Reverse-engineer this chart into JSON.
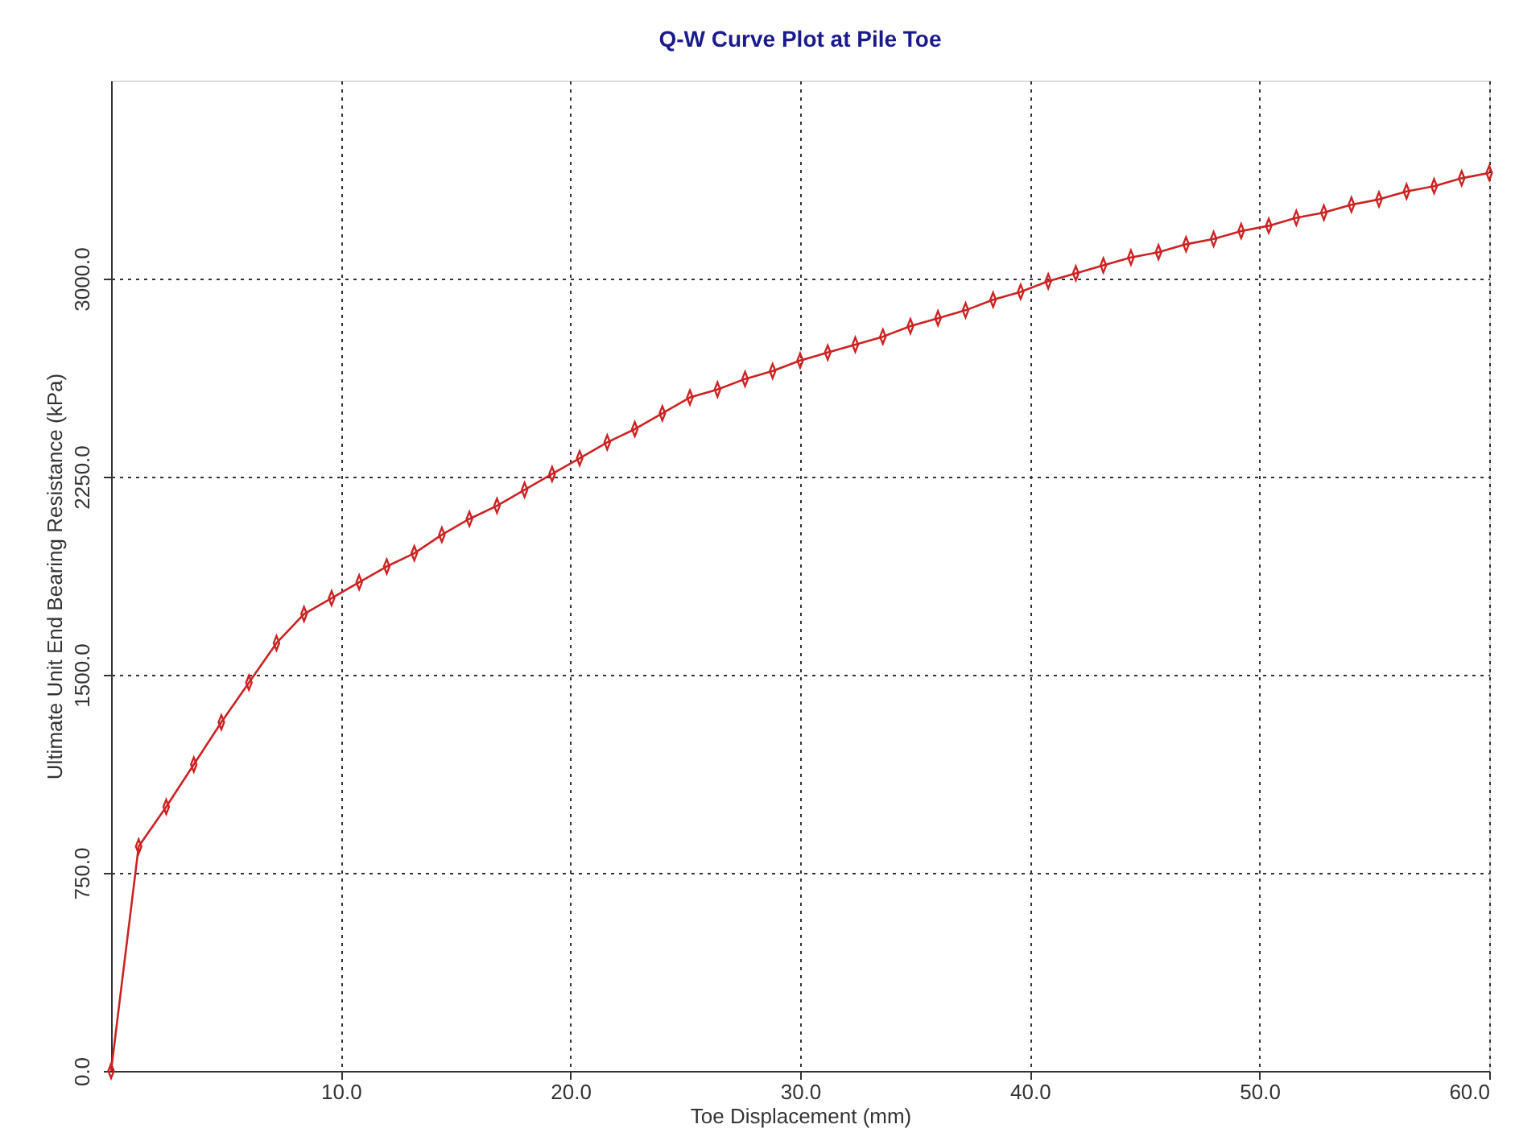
{
  "chart_data": {
    "type": "line",
    "title": "Q-W Curve Plot at Pile Toe",
    "xlabel": "Toe Displacement (mm)",
    "ylabel": "Ultimate Unit End Bearing Resistance (kPa)",
    "x": [
      0,
      1.2,
      2.4,
      3.6,
      4.8,
      6.0,
      7.2,
      8.4,
      9.6,
      10.8,
      12.0,
      13.2,
      14.4,
      15.6,
      16.8,
      18.0,
      19.2,
      20.4,
      21.6,
      22.8,
      24.0,
      25.2,
      26.4,
      27.6,
      28.8,
      30.0,
      31.2,
      32.4,
      33.6,
      34.8,
      36.0,
      37.2,
      38.4,
      39.6,
      40.8,
      42.0,
      43.2,
      44.4,
      45.6,
      46.8,
      48.0,
      49.2,
      50.4,
      51.6,
      52.8,
      54.0,
      55.2,
      56.4,
      57.6,
      58.8,
      60.0
    ],
    "series": [
      {
        "color": "#cc2222",
        "values": [
          0,
          850,
          1000,
          1160,
          1320,
          1470,
          1620,
          1730,
          1790,
          1850,
          1910,
          1960,
          2030,
          2090,
          2140,
          2200,
          2260,
          2320,
          2380,
          2430,
          2490,
          2550,
          2580,
          2620,
          2650,
          2690,
          2720,
          2750,
          2780,
          2820,
          2850,
          2880,
          2920,
          2950,
          2990,
          3020,
          3050,
          3080,
          3100,
          3130,
          3150,
          3180,
          3200,
          3230,
          3250,
          3280,
          3300,
          3330,
          3350,
          3380,
          3400
        ]
      }
    ],
    "xlim": [
      0,
      60
    ],
    "ylim": [
      0,
      3750
    ],
    "xticks": [
      {
        "value": 10,
        "label": "10.0"
      },
      {
        "value": 20,
        "label": "20.0"
      },
      {
        "value": 30,
        "label": "30.0"
      },
      {
        "value": 40,
        "label": "40.0"
      },
      {
        "value": 50,
        "label": "50.0"
      },
      {
        "value": 60,
        "label": "60.0"
      }
    ],
    "yticks": [
      {
        "value": 0,
        "label": "0.0"
      },
      {
        "value": 750,
        "label": "750.0"
      },
      {
        "value": 1500,
        "label": "1500.0"
      },
      {
        "value": 2250,
        "label": "2250.0"
      },
      {
        "value": 3000,
        "label": "3000.0"
      }
    ],
    "grid": true,
    "marker": "diamond",
    "line_style": "solid"
  }
}
